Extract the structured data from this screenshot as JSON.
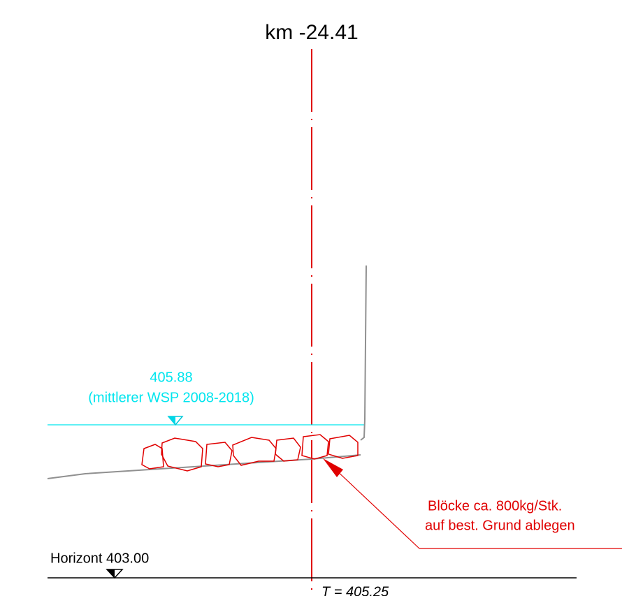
{
  "title": "km -24.41",
  "water_level": {
    "value": "405.88",
    "label": "(mittlerer WSP 2008-2018)"
  },
  "annotation": {
    "line1": "Blöcke ca. 800kg/Stk.",
    "line2": "auf best. Grund ablegen"
  },
  "horizon": "Horizont 403.00",
  "bottom_label": "T = 405.25"
}
